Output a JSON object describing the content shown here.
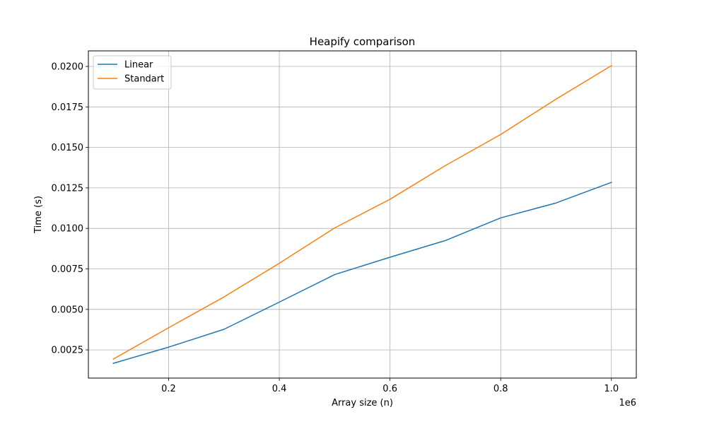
{
  "chart_data": {
    "type": "line",
    "title": "Heapify comparison",
    "xlabel": "Array size (n)",
    "ylabel": "Time (s)",
    "x_offset_label": "1e6",
    "x": [
      100000,
      200000,
      300000,
      400000,
      500000,
      600000,
      700000,
      800000,
      900000,
      1000000
    ],
    "series": [
      {
        "name": "Linear",
        "color": "#1f77b4",
        "values": [
          0.00167,
          0.00267,
          0.00377,
          0.00545,
          0.00715,
          0.00822,
          0.00925,
          0.01065,
          0.01157,
          0.01284
        ]
      },
      {
        "name": "Standart",
        "color": "#ff7f0e",
        "values": [
          0.00193,
          0.00387,
          0.00577,
          0.00785,
          0.01003,
          0.0118,
          0.01388,
          0.0158,
          0.01798,
          0.02005
        ]
      }
    ],
    "xlim": [
      55000,
      1045000
    ],
    "ylim": [
      0.00076,
      0.02096
    ],
    "xticks": [
      200000,
      400000,
      600000,
      800000,
      1000000
    ],
    "xtick_labels": [
      "0.2",
      "0.4",
      "0.6",
      "0.8",
      "1.0"
    ],
    "yticks": [
      0.0025,
      0.005,
      0.0075,
      0.01,
      0.0125,
      0.015,
      0.0175,
      0.02
    ],
    "ytick_labels": [
      "0.0025",
      "0.0050",
      "0.0075",
      "0.0100",
      "0.0125",
      "0.0150",
      "0.0175",
      "0.0200"
    ],
    "grid": true,
    "legend_position": "top-left"
  }
}
